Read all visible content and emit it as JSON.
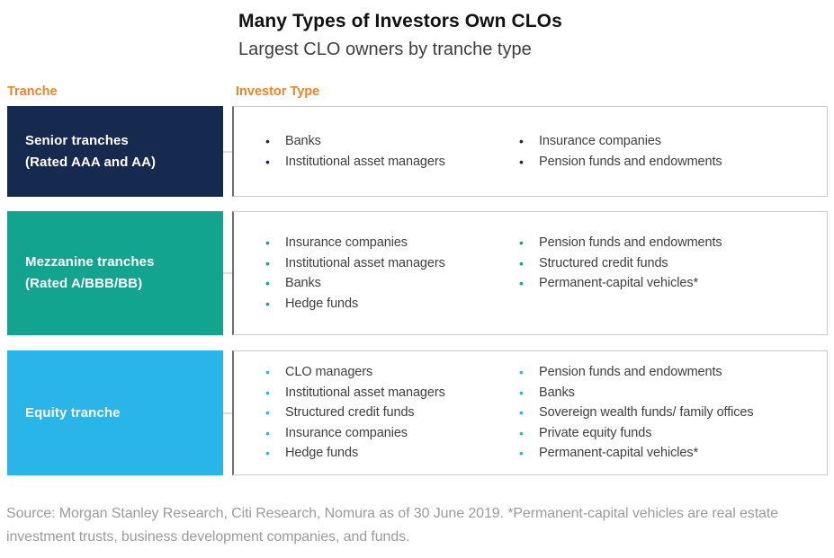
{
  "title": "Many Types of Investors Own CLOs",
  "subtitle": "Largest CLO owners by tranche type",
  "column_headers": {
    "tranche": "Tranche",
    "investor_type": "Investor Type"
  },
  "colors": {
    "accent_orange": "#F58220",
    "senior_navy": "#16294E",
    "mezzanine_teal": "#12A48E",
    "equity_blue": "#29B5E8",
    "box_border": "#CBCBCB",
    "box_border_left": "#6F6F6F",
    "body_text": "#3F3F3F",
    "footnote_text": "#9B9B9B"
  },
  "rows": [
    {
      "id": "senior",
      "label_line1": "Senior tranches",
      "label_line2": "(Rated AAA and AA)",
      "color": "#16294E",
      "investors_col1": [
        "Banks",
        "Institutional asset managers"
      ],
      "investors_col2": [
        "Insurance companies",
        "Pension funds and endowments"
      ]
    },
    {
      "id": "mezzanine",
      "label_line1": "Mezzanine tranches",
      "label_line2": "(Rated A/BBB/BB)",
      "color": "#12A48E",
      "investors_col1": [
        "Insurance companies",
        "Institutional asset managers",
        "Banks",
        "Hedge funds"
      ],
      "investors_col2": [
        "Pension funds and endowments",
        "Structured credit funds",
        "Permanent-capital vehicles*"
      ]
    },
    {
      "id": "equity",
      "label_line1": "Equity tranche",
      "label_line2": "",
      "color": "#29B5E8",
      "investors_col1": [
        "CLO managers",
        "Institutional asset managers",
        "Structured credit funds",
        "Insurance companies",
        "Hedge funds"
      ],
      "investors_col2": [
        "Pension funds and endowments",
        "Banks",
        "Sovereign wealth funds/ family offices",
        "Private equity funds",
        "Permanent-capital vehicles*"
      ]
    }
  ],
  "footnote": "Source: Morgan Stanley Research, Citi Research, Nomura as of 30 June 2019. *Permanent-capital vehicles are real estate investment trusts, business development companies, and funds."
}
